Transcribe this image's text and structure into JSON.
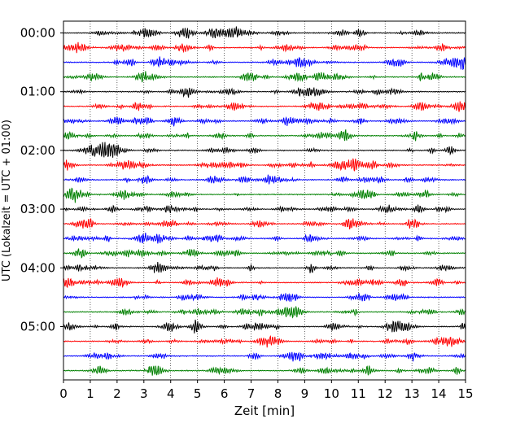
{
  "chart_data": {
    "type": "line",
    "title": "",
    "xlabel": "Zeit  [min]",
    "ylabel": "UTC (Lokalzeit = UTC + 01:00)",
    "xlim": [
      0,
      15
    ],
    "x_ticks": [
      "0",
      "1",
      "2",
      "3",
      "4",
      "5",
      "6",
      "7",
      "8",
      "9",
      "10",
      "11",
      "12",
      "13",
      "14",
      "15"
    ],
    "y_ticks": [
      "00:00",
      "01:00",
      "02:00",
      "03:00",
      "04:00",
      "05:00"
    ],
    "rows_per_hour": 4,
    "row_count": 24,
    "row_colors": [
      "#000000",
      "#ff0000",
      "#0000ff",
      "#008000"
    ],
    "grid": "vertical-dotted"
  }
}
